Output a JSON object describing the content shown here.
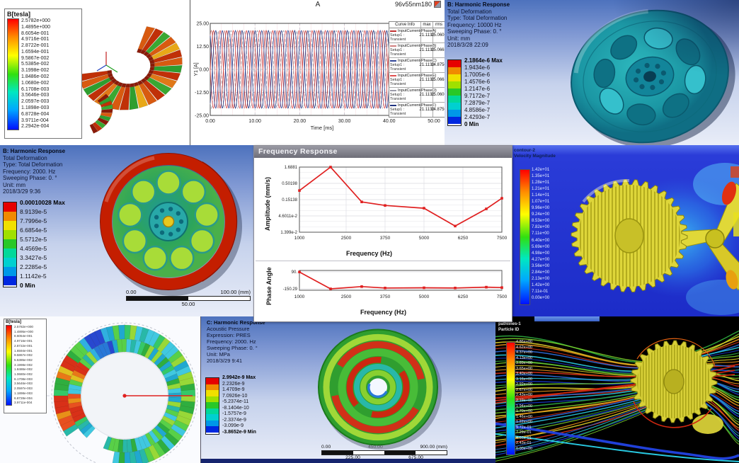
{
  "colors": {
    "band9": [
      "#e60000",
      "#f08a00",
      "#f0e000",
      "#a0e000",
      "#28c828",
      "#00d89a",
      "#00d0d0",
      "#0098e8",
      "#0028e0"
    ],
    "curve_red": "#e02020",
    "ansys_header_text": "#0d1530"
  },
  "panels": {
    "maxwell_arc": {
      "legend_title": "B[tesla]",
      "legend_values": [
        "2.5782e+000",
        "1.4895e+000",
        "8.6054e-001",
        "4.9716e-001",
        "2.8722e-001",
        "1.6594e-001",
        "9.5867e-002",
        "5.5385e-002",
        "3.1998e-002",
        "1.8486e-002",
        "1.0680e-002",
        "6.1708e-003",
        "3.5646e-003",
        "2.0597e-003",
        "1.1898e-003",
        "6.8728e-004",
        "3.9711e-004",
        "2.2942e-004"
      ]
    },
    "current_plot": {
      "title": "A",
      "model_label": "96v55nm180",
      "xlabel": "Time [ms]",
      "ylabel": "Y1 [A]",
      "yticks": [
        "25.00",
        "12.50",
        "0.00",
        "-12.50",
        "-25.00"
      ],
      "xticks": [
        "0.00",
        "10.00",
        "20.00",
        "30.00",
        "40.00",
        "50.00"
      ],
      "table": {
        "headers": [
          "Curve Info",
          "max",
          "rms"
        ],
        "rows": [
          {
            "name": "InputCurrent(PhaseA)",
            "setup": "Setup1 : Transient",
            "max": "21.1132",
            "rms": "15.0606",
            "color": "#c03030",
            "dash": false
          },
          {
            "name": "InputCurrent(PhaseB)",
            "setup": "Setup1 : Transient",
            "max": "21.1132",
            "rms": "15.0668",
            "color": "#d08080",
            "dash": false
          },
          {
            "name": "InputCurrent(PhaseC)",
            "setup": "Setup1 : Transient",
            "max": "21.1132",
            "rms": "14.8750",
            "color": "#2f4496",
            "dash": false
          },
          {
            "name": "InputCurrent(PhaseE)",
            "setup": "Setup1 : Transient",
            "max": "21.1132",
            "rms": "15.0668",
            "color": "#e05050",
            "dash": false
          },
          {
            "name": "InputCurrent(PhaseD)",
            "setup": "Setup1 : Transient",
            "max": "21.1132",
            "rms": "15.0606",
            "color": "#9a9aa8",
            "dash": true
          },
          {
            "name": "InputCurrent(PhaseF)",
            "setup": "Setup1 : Transient",
            "max": "21.1132",
            "rms": "14.8750",
            "color": "#1f3380",
            "dash": false
          }
        ]
      }
    },
    "harmonic_top": {
      "header_lines": [
        "B: Harmonic Response",
        "Total Deformation",
        "Type: Total Deformation",
        "Frequency: 10000 Hz",
        "Sweeping Phase: 0. °",
        "Unit: mm",
        "2018/3/28 22:09"
      ],
      "legend_values": [
        "2.1864e-6 Max",
        "1.9434e-6",
        "1.7005e-6",
        "1.4576e-6",
        "1.2147e-6",
        "9.7172e-7",
        "7.2879e-7",
        "4.8586e-7",
        "2.4293e-7",
        "0 Min"
      ]
    },
    "harmonic_left": {
      "header_lines": [
        "B: Harmonic Response",
        "Total Deformation",
        "Type: Total Deformation",
        "Frequency: 2000. Hz",
        "Sweeping Phase: 0. °",
        "Unit: mm",
        "2018/3/29 9:36"
      ],
      "legend_values": [
        "0.00010028 Max",
        "8.9139e-5",
        "7.7996e-5",
        "6.6854e-5",
        "5.5712e-5",
        "4.4569e-5",
        "3.3427e-5",
        "2.2285e-5",
        "1.1142e-5",
        "0 Min"
      ],
      "scalebar": {
        "left": "0.00",
        "right": "100.00 (mm)",
        "mid": "50.00"
      }
    },
    "freq_window": {
      "title": "Frequency Response",
      "amp_xlabel": "Frequency (Hz)",
      "amp_ylabel": "Amplitude (mm/s)",
      "phase_xlabel": "Frequency (Hz)",
      "phase_ylabel": "Phase Angle"
    },
    "cfd": {
      "legend_title1": "contour-2",
      "legend_title2": "Velocity Magnitude",
      "legend_values": [
        "1.42e+01",
        "1.35e+01",
        "1.28e+01",
        "1.21e+01",
        "1.14e+01",
        "1.07e+01",
        "9.96e+00",
        "9.24e+00",
        "8.53e+00",
        "7.82e+00",
        "7.11e+00",
        "6.40e+00",
        "5.69e+00",
        "4.98e+00",
        "4.27e+00",
        "3.56e+00",
        "2.84e+00",
        "2.13e+00",
        "1.42e+00",
        "7.11e-01",
        "0.00e+00"
      ]
    },
    "stator_field": {
      "legend_title": "B[tesla]",
      "legend_values": [
        "2.5782e+000",
        "1.4895e+000",
        "8.6054e-001",
        "4.9716e-001",
        "2.8722e-001",
        "1.6594e-001",
        "9.5867e-002",
        "5.5385e-002",
        "3.1998e-002",
        "1.8486e-002",
        "1.0680e-002",
        "6.1708e-003",
        "3.5646e-003",
        "2.0597e-003",
        "1.1898e-003",
        "6.8728e-004",
        "3.9711e-004"
      ]
    },
    "acoustic": {
      "header_lines": [
        "C: Harmonic Response",
        "Acoustic Pressure",
        "Expression: PRES",
        "Frequency: 2000. Hz",
        "Sweeping Phase: 0. °",
        "Unit: MPa",
        "2018/3/29 9:41"
      ],
      "legend_values": [
        "2.9942e-9 Max",
        "2.2326e-9",
        "1.4709e-9",
        "7.0926e-10",
        "-5.2374e-11",
        "-8.1404e-10",
        "-1.5757e-9",
        "-2.3374e-9",
        "-3.099e-9",
        "-3.8652e-9 Min"
      ],
      "scalebar": {
        "left": "0.00",
        "mid": "450.00",
        "right": "900.00 (mm)",
        "q1": "225.00",
        "q3": "675.00"
      }
    },
    "pathlines": {
      "legend_title1": "pathlines-1",
      "legend_title2": "Particle ID",
      "legend_values": [
        "4.86e+00",
        "4.62e+00",
        "4.37e+00",
        "4.13e+00",
        "3.89e+00",
        "3.65e+00",
        "3.40e+00",
        "3.16e+00",
        "2.92e+00",
        "2.67e+00",
        "2.43e+00",
        "2.19e+00",
        "1.94e+00",
        "1.70e+00",
        "1.46e+00",
        "1.22e+00",
        "9.72e-01",
        "7.29e-01",
        "4.86e-01",
        "2.43e-01",
        "0.00e+00"
      ]
    }
  },
  "chart_data": [
    {
      "id": "phase_currents",
      "type": "line",
      "title": "A",
      "window_label": "96v55nm180",
      "xlabel": "Time [ms]",
      "ylabel": "Y1 [A]",
      "xlim": [
        0,
        50
      ],
      "ylim": [
        -25,
        25
      ],
      "xticks": [
        0,
        10,
        20,
        30,
        40,
        50
      ],
      "yticks": [
        25,
        12.5,
        0,
        -12.5,
        -25
      ],
      "grid": true,
      "waveform": {
        "amplitude": 21.1132,
        "period_ms": 2.941
      },
      "series": [
        {
          "name": "InputCurrent(PhaseA)",
          "setup": "Setup1 : Transient",
          "max": 21.1132,
          "rms": 15.0606,
          "phase_deg": 0,
          "color": "#c03030",
          "dash": false
        },
        {
          "name": "InputCurrent(PhaseB)",
          "setup": "Setup1 : Transient",
          "max": 21.1132,
          "rms": 15.0668,
          "phase_deg": 60,
          "color": "#d08080",
          "dash": false
        },
        {
          "name": "InputCurrent(PhaseC)",
          "setup": "Setup1 : Transient",
          "max": 21.1132,
          "rms": 14.875,
          "phase_deg": 120,
          "color": "#2f4496",
          "dash": false
        },
        {
          "name": "InputCurrent(PhaseE)",
          "setup": "Setup1 : Transient",
          "max": 21.1132,
          "rms": 15.0668,
          "phase_deg": 180,
          "color": "#e05050",
          "dash": false
        },
        {
          "name": "InputCurrent(PhaseD)",
          "setup": "Setup1 : Transient",
          "max": 21.1132,
          "rms": 15.0606,
          "phase_deg": 240,
          "color": "#9a9aa8",
          "dash": true
        },
        {
          "name": "InputCurrent(PhaseF)",
          "setup": "Setup1 : Transient",
          "max": 21.1132,
          "rms": 14.875,
          "phase_deg": 300,
          "color": "#1f3380",
          "dash": false
        }
      ]
    },
    {
      "id": "amplitude_response",
      "type": "line",
      "log_y": true,
      "xlabel": "Frequency (Hz)",
      "ylabel": "Amplitude (mm/s)",
      "xticks": [
        1000,
        2500,
        3750,
        5000,
        6250,
        7500
      ],
      "ytick_labels": [
        "1.6881",
        "0.50198",
        "0.15138",
        "4.6011e-2",
        "1.399e-2"
      ],
      "xlim": [
        1000,
        7500
      ],
      "ylim_log": [
        0.01399,
        1.6881
      ],
      "x": [
        1000,
        2000,
        3000,
        3750,
        5000,
        6000,
        7000,
        7500
      ],
      "y": [
        0.3,
        1.6881,
        0.13,
        0.1,
        0.082,
        0.022,
        0.078,
        0.17
      ],
      "color": "#e02020",
      "legend_position": "none"
    },
    {
      "id": "phase_response",
      "type": "line",
      "xlabel": "Frequency (Hz)",
      "ylabel": "Phase Angle",
      "xticks": [
        1000,
        2500,
        3750,
        5000,
        6250,
        7500
      ],
      "ytick_labels": [
        "90.",
        "-150.29"
      ],
      "ylim": [
        -170,
        110
      ],
      "x": [
        1000,
        2000,
        3000,
        3750,
        5000,
        6000,
        7000,
        7500
      ],
      "y": [
        88,
        -150,
        -118,
        -138,
        -135,
        -138,
        -126,
        -132
      ],
      "color": "#e02020",
      "legend_position": "none"
    }
  ]
}
